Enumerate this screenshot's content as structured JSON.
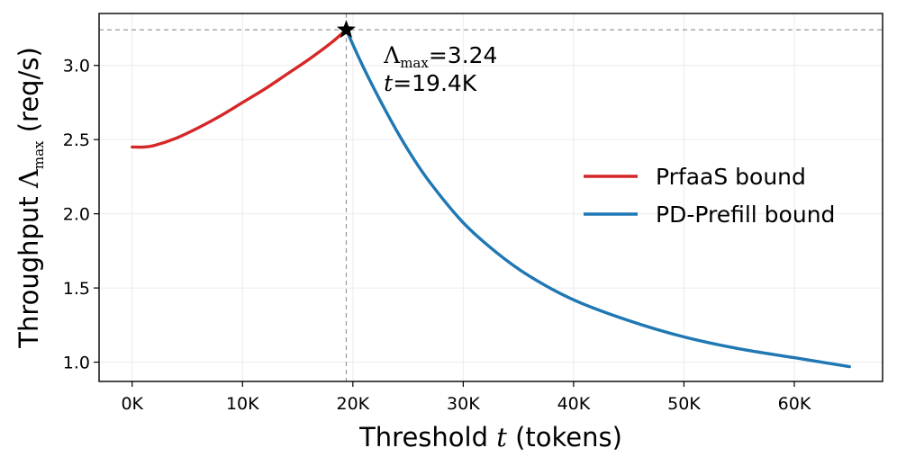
{
  "chart_data": {
    "type": "line",
    "title": "",
    "xlabel": "Threshold t (tokens)",
    "xlabel_parts": {
      "before": "Threshold ",
      "var": "t",
      "after": " (tokens)"
    },
    "ylabel": "Throughput Λmax (req/s)",
    "ylabel_parts": {
      "before": "Throughput ",
      "var": "Λ",
      "sub": "max",
      "after": " (req/s)"
    },
    "xlim": [
      -3000,
      68000
    ],
    "ylim": [
      0.87,
      3.35
    ],
    "x_ticks": [
      0,
      10000,
      20000,
      30000,
      40000,
      50000,
      60000
    ],
    "x_tick_labels": [
      "0K",
      "10K",
      "20K",
      "30K",
      "40K",
      "50K",
      "60K"
    ],
    "y_ticks": [
      1.0,
      1.5,
      2.0,
      2.5,
      3.0
    ],
    "y_tick_labels": [
      "1.0",
      "1.5",
      "2.0",
      "2.5",
      "3.0"
    ],
    "grid": true,
    "legend_position": "center-right",
    "series": [
      {
        "name": "PrfaaS bound",
        "color": "#d62728",
        "x": [
          0,
          1000,
          2000,
          4000,
          6000,
          8000,
          10000,
          12000,
          14000,
          16000,
          18000,
          19400
        ],
        "y": [
          2.45,
          2.45,
          2.46,
          2.51,
          2.58,
          2.66,
          2.75,
          2.84,
          2.94,
          3.04,
          3.15,
          3.24
        ]
      },
      {
        "name": "PD-Prefill bound",
        "color": "#1f77b4",
        "x": [
          19400,
          21000,
          23000,
          25000,
          27000,
          30000,
          33000,
          36000,
          40000,
          45000,
          50000,
          55000,
          60000,
          65000
        ],
        "y": [
          3.24,
          2.98,
          2.69,
          2.43,
          2.21,
          1.94,
          1.74,
          1.58,
          1.42,
          1.28,
          1.17,
          1.09,
          1.03,
          0.97
        ]
      }
    ],
    "peak": {
      "x": 19400,
      "y": 3.24,
      "label_lambda": "Λ",
      "label_sub": "max",
      "label_value": "=3.24",
      "label_t": "t",
      "label_t_value": "=19.4K"
    }
  }
}
